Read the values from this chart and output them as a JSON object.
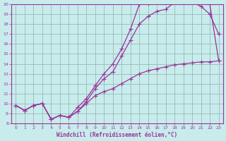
{
  "background_color": "#c8ecec",
  "line_color": "#993399",
  "xlabel": "Windchill (Refroidissement éolien,°C)",
  "xlim": [
    -0.5,
    23.5
  ],
  "ylim": [
    8,
    20
  ],
  "yticks": [
    8,
    9,
    10,
    11,
    12,
    13,
    14,
    15,
    16,
    17,
    18,
    19,
    20
  ],
  "xticks": [
    0,
    1,
    2,
    3,
    4,
    5,
    6,
    7,
    8,
    9,
    10,
    11,
    12,
    13,
    14,
    15,
    16,
    17,
    18,
    19,
    20,
    21,
    22,
    23
  ],
  "line1_x": [
    0,
    1,
    2,
    3,
    4,
    5,
    6,
    7,
    8,
    9,
    10,
    11,
    12,
    13,
    14,
    15,
    16,
    17,
    18,
    19,
    20,
    21,
    22,
    23
  ],
  "line1_y": [
    9.8,
    9.3,
    9.8,
    10.0,
    8.4,
    8.8,
    8.6,
    9.2,
    10.2,
    11.5,
    12.5,
    13.2,
    14.8,
    16.4,
    18.0,
    18.8,
    19.3,
    19.5,
    20.2,
    20.3,
    20.2,
    19.8,
    19.0,
    17.0
  ],
  "line2_x": [
    0,
    1,
    2,
    3,
    4,
    5,
    6,
    7,
    8,
    9,
    10,
    11,
    12,
    13,
    14,
    15,
    16,
    17,
    18,
    19,
    20,
    21,
    22,
    23
  ],
  "line2_y": [
    9.8,
    9.3,
    9.8,
    10.0,
    8.4,
    8.8,
    8.6,
    9.6,
    10.5,
    11.8,
    13.0,
    14.0,
    15.5,
    17.5,
    20.0,
    20.1,
    20.2,
    20.3,
    20.3,
    20.3,
    20.2,
    20.1,
    20.0,
    14.3
  ],
  "line3_x": [
    0,
    1,
    2,
    3,
    4,
    5,
    6,
    7,
    8,
    9,
    10,
    11,
    12,
    13,
    14,
    15,
    16,
    17,
    18,
    19,
    20,
    21,
    22,
    23
  ],
  "line3_y": [
    9.8,
    9.3,
    9.8,
    10.0,
    8.4,
    8.8,
    8.6,
    9.2,
    10.0,
    10.8,
    11.2,
    11.5,
    12.0,
    12.5,
    13.0,
    13.3,
    13.5,
    13.7,
    13.9,
    14.0,
    14.1,
    14.2,
    14.2,
    14.3
  ],
  "grid_color": "#9ab8b8",
  "marker": "+",
  "markersize": 4,
  "linewidth": 0.9
}
